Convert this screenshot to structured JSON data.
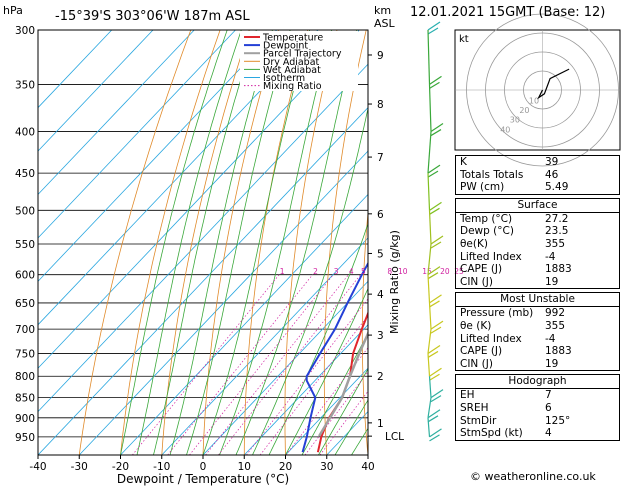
{
  "header": {
    "hpa_label": "hPa",
    "location": "-15°39'S 303°06'W 187m ASL",
    "km_label": "km",
    "asl_label": "ASL",
    "datetime": "12.01.2021 15GMT (Base: 12)"
  },
  "credit": "© weatheronline.co.uk",
  "colors": {
    "temperature": "#e0262d",
    "dewpoint": "#2440d6",
    "parcel": "#a0a0a0",
    "dry_adiabat": "#e08a2a",
    "wet_adiabat": "#3aa83a",
    "isotherm": "#2aa7e0",
    "mixing_ratio": "#d020a0"
  },
  "chart_data": {
    "type": "line",
    "title": "",
    "xlabel": "Dewpoint / Temperature (°C)",
    "ylabel": "",
    "right_ylabel": "Mixing Ratio (g/kg)",
    "xlim": [
      -40,
      40
    ],
    "ylim": [
      300,
      1000
    ],
    "y_scale": "log",
    "grid": true,
    "legend_position": "top-left",
    "x_ticks": [
      -40,
      -30,
      -20,
      -10,
      0,
      10,
      20,
      30,
      40
    ],
    "pressure_ticks": [
      300,
      350,
      400,
      450,
      500,
      550,
      600,
      650,
      700,
      750,
      800,
      850,
      900,
      950
    ],
    "km_ticks": [
      {
        "label": "1",
        "p": 913
      },
      {
        "label": "2",
        "p": 800
      },
      {
        "label": "3",
        "p": 712
      },
      {
        "label": "4",
        "p": 634
      },
      {
        "label": "5",
        "p": 565
      },
      {
        "label": "6",
        "p": 505
      },
      {
        "label": "7",
        "p": 430
      },
      {
        "label": "8",
        "p": 370
      },
      {
        "label": "9",
        "p": 322
      }
    ],
    "lcl": {
      "label": "LCL",
      "p": 948
    },
    "mixing_ratio_labels": [
      "1",
      "2",
      "3",
      "4",
      "5",
      "8",
      "10",
      "15",
      "20",
      "25"
    ],
    "mixing_ratio_values": [
      1,
      2,
      3,
      4,
      5,
      8,
      10,
      15,
      20,
      25
    ],
    "mixing_ratio_label_p": 594,
    "series": [
      {
        "name": "Temperature",
        "points": [
          [
            27.2,
            992
          ],
          [
            24.5,
            950
          ],
          [
            22,
            900
          ],
          [
            20.5,
            850
          ],
          [
            17.5,
            800
          ],
          [
            13,
            750
          ],
          [
            9.5,
            700
          ],
          [
            6,
            650
          ],
          [
            3,
            600
          ],
          [
            -1,
            550
          ],
          [
            -5,
            500
          ],
          [
            -10,
            450
          ],
          [
            -15,
            400
          ],
          [
            -20,
            370
          ],
          [
            -21,
            350
          ]
        ]
      },
      {
        "name": "Dewpoint",
        "points": [
          [
            23.5,
            992
          ],
          [
            21,
            950
          ],
          [
            17.5,
            900
          ],
          [
            14,
            850
          ],
          [
            8,
            810
          ],
          [
            7,
            800
          ],
          [
            5,
            750
          ],
          [
            3,
            700
          ],
          [
            0,
            650
          ],
          [
            -3,
            600
          ],
          [
            -6,
            550
          ],
          [
            -10,
            500
          ],
          [
            -15,
            450
          ],
          [
            -20,
            405
          ],
          [
            -27,
            395
          ],
          [
            -30,
            380
          ],
          [
            -36,
            370
          ],
          [
            -40,
            350
          ],
          [
            -45,
            330
          ],
          [
            -51,
            300
          ]
        ]
      },
      {
        "name": "Parcel Trajectory",
        "points": [
          [
            23.8,
            948
          ],
          [
            20.5,
            850
          ],
          [
            17.5,
            800
          ],
          [
            14.5,
            750
          ],
          [
            11.5,
            700
          ],
          [
            8.5,
            650
          ],
          [
            5.5,
            600
          ],
          [
            2,
            550
          ],
          [
            -2,
            500
          ],
          [
            -6.5,
            450
          ],
          [
            -12,
            400
          ],
          [
            -18,
            350
          ],
          [
            -26,
            300
          ]
        ]
      }
    ],
    "legend": [
      "Temperature",
      "Dewpoint",
      "Parcel Trajectory",
      "Dry Adiabat",
      "Wet Adiabat",
      "Isotherm",
      "Mixing Ratio"
    ],
    "hodograph": {
      "label": "kt",
      "ring_labels": [
        "10",
        "20",
        "30",
        "40"
      ],
      "points": [
        [
          0,
          0
        ],
        [
          -2,
          4
        ],
        [
          1,
          2
        ],
        [
          4,
          -6
        ],
        [
          14,
          -11
        ]
      ]
    },
    "wind_barb_pressures": [
      300,
      350,
      400,
      450,
      500,
      550,
      600,
      650,
      700,
      750,
      800,
      850,
      900,
      950
    ]
  },
  "indices": {
    "rows": [
      {
        "label": "K",
        "value": "39"
      },
      {
        "label": "Totals Totals",
        "value": "46"
      },
      {
        "label": "PW (cm)",
        "value": "5.49"
      }
    ]
  },
  "surface": {
    "title": "Surface",
    "rows": [
      {
        "label": "Temp (°C)",
        "value": "27.2"
      },
      {
        "label": "Dewp (°C)",
        "value": "23.5"
      },
      {
        "label": "θe(K)",
        "value": "355"
      },
      {
        "label": "Lifted Index",
        "value": "-4"
      },
      {
        "label": "CAPE (J)",
        "value": "1883"
      },
      {
        "label": "CIN (J)",
        "value": "19"
      }
    ]
  },
  "most_unstable": {
    "title": "Most Unstable",
    "rows": [
      {
        "label": "Pressure (mb)",
        "value": "992"
      },
      {
        "label": "θe (K)",
        "value": "355"
      },
      {
        "label": "Lifted Index",
        "value": "-4"
      },
      {
        "label": "CAPE (J)",
        "value": "1883"
      },
      {
        "label": "CIN (J)",
        "value": "19"
      }
    ]
  },
  "hodograph_table": {
    "title": "Hodograph",
    "rows": [
      {
        "label": "EH",
        "value": "7"
      },
      {
        "label": "SREH",
        "value": "6"
      },
      {
        "label": "StmDir",
        "value": "125°"
      },
      {
        "label": "StmSpd (kt)",
        "value": "4"
      }
    ]
  }
}
